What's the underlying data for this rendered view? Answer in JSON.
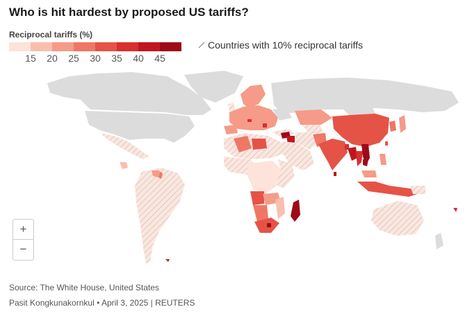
{
  "title": "Who is hit hardest by proposed US tariffs?",
  "legend": {
    "title": "Reciprocal tariffs (%)",
    "scale": [
      {
        "color": "#fde3da"
      },
      {
        "color": "#f9bfae",
        "label": "15"
      },
      {
        "color": "#f59b88",
        "label": "20"
      },
      {
        "color": "#ef7765",
        "label": "25"
      },
      {
        "color": "#e55347",
        "label": "30"
      },
      {
        "color": "#d7302f",
        "label": "35"
      },
      {
        "color": "#c1161f",
        "label": "40"
      },
      {
        "color": "#9e0a17",
        "label": "45"
      }
    ],
    "hatch_label": "Countries with 10% reciprocal tariffs"
  },
  "colors": {
    "no_data": "#dcdcdc",
    "hatch_fill": "#f7e8e2",
    "hatch_line": "#f1c9bb"
  },
  "zoom": {
    "in_icon": "+",
    "out_icon": "−"
  },
  "source": "Source: The White House, United States",
  "credit": "Pasit Kongkunakornkul • April 3, 2025 | REUTERS"
}
